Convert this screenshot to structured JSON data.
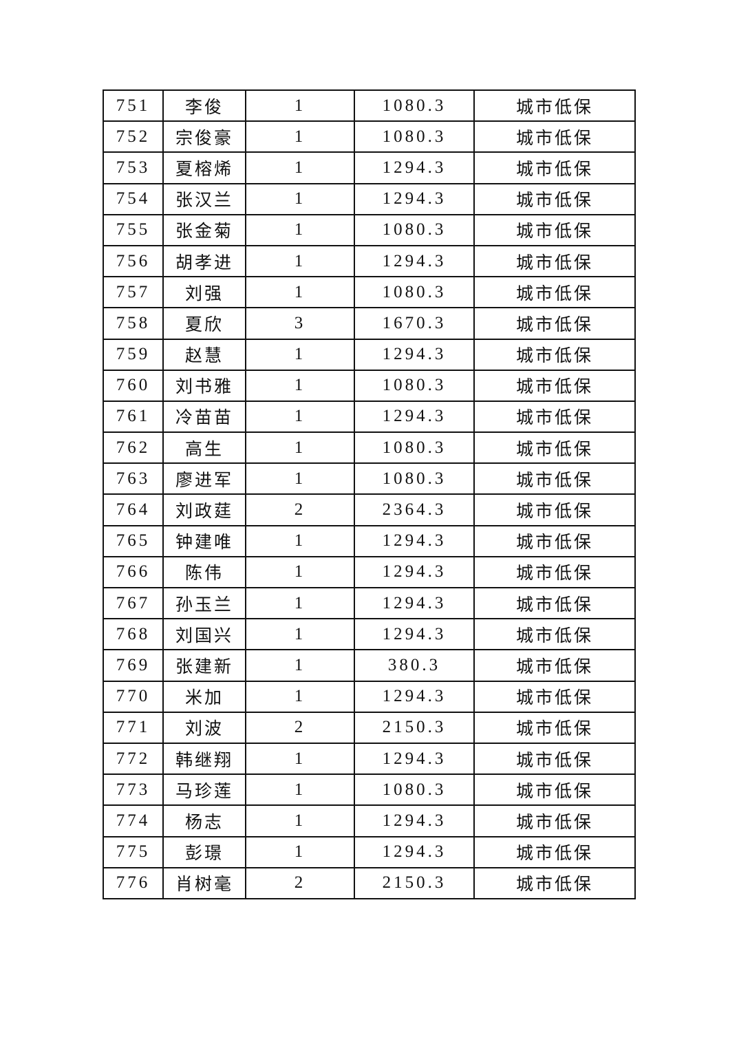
{
  "table": {
    "rows": [
      {
        "no": "751",
        "name": "李俊",
        "count": "1",
        "amount": "1080.3",
        "type": "城市低保"
      },
      {
        "no": "752",
        "name": "宗俊豪",
        "count": "1",
        "amount": "1080.3",
        "type": "城市低保"
      },
      {
        "no": "753",
        "name": "夏榕烯",
        "count": "1",
        "amount": "1294.3",
        "type": "城市低保"
      },
      {
        "no": "754",
        "name": "张汉兰",
        "count": "1",
        "amount": "1294.3",
        "type": "城市低保"
      },
      {
        "no": "755",
        "name": "张金菊",
        "count": "1",
        "amount": "1080.3",
        "type": "城市低保"
      },
      {
        "no": "756",
        "name": "胡孝进",
        "count": "1",
        "amount": "1294.3",
        "type": "城市低保"
      },
      {
        "no": "757",
        "name": "刘强",
        "count": "1",
        "amount": "1080.3",
        "type": "城市低保"
      },
      {
        "no": "758",
        "name": "夏欣",
        "count": "3",
        "amount": "1670.3",
        "type": "城市低保"
      },
      {
        "no": "759",
        "name": "赵慧",
        "count": "1",
        "amount": "1294.3",
        "type": "城市低保"
      },
      {
        "no": "760",
        "name": "刘书雅",
        "count": "1",
        "amount": "1080.3",
        "type": "城市低保"
      },
      {
        "no": "761",
        "name": "冷苗苗",
        "count": "1",
        "amount": "1294.3",
        "type": "城市低保"
      },
      {
        "no": "762",
        "name": "高生",
        "count": "1",
        "amount": "1080.3",
        "type": "城市低保"
      },
      {
        "no": "763",
        "name": "廖进军",
        "count": "1",
        "amount": "1080.3",
        "type": "城市低保"
      },
      {
        "no": "764",
        "name": "刘政莛",
        "count": "2",
        "amount": "2364.3",
        "type": "城市低保"
      },
      {
        "no": "765",
        "name": "钟建唯",
        "count": "1",
        "amount": "1294.3",
        "type": "城市低保"
      },
      {
        "no": "766",
        "name": "陈伟",
        "count": "1",
        "amount": "1294.3",
        "type": "城市低保"
      },
      {
        "no": "767",
        "name": "孙玉兰",
        "count": "1",
        "amount": "1294.3",
        "type": "城市低保"
      },
      {
        "no": "768",
        "name": "刘国兴",
        "count": "1",
        "amount": "1294.3",
        "type": "城市低保"
      },
      {
        "no": "769",
        "name": "张建新",
        "count": "1",
        "amount": "380.3",
        "type": "城市低保"
      },
      {
        "no": "770",
        "name": "米加",
        "count": "1",
        "amount": "1294.3",
        "type": "城市低保"
      },
      {
        "no": "771",
        "name": "刘波",
        "count": "2",
        "amount": "2150.3",
        "type": "城市低保"
      },
      {
        "no": "772",
        "name": "韩继翔",
        "count": "1",
        "amount": "1294.3",
        "type": "城市低保"
      },
      {
        "no": "773",
        "name": "马珍莲",
        "count": "1",
        "amount": "1080.3",
        "type": "城市低保"
      },
      {
        "no": "774",
        "name": "杨志",
        "count": "1",
        "amount": "1294.3",
        "type": "城市低保"
      },
      {
        "no": "775",
        "name": "彭璟",
        "count": "1",
        "amount": "1294.3",
        "type": "城市低保"
      },
      {
        "no": "776",
        "name": "肖树毫",
        "count": "2",
        "amount": "2150.3",
        "type": "城市低保"
      }
    ]
  }
}
